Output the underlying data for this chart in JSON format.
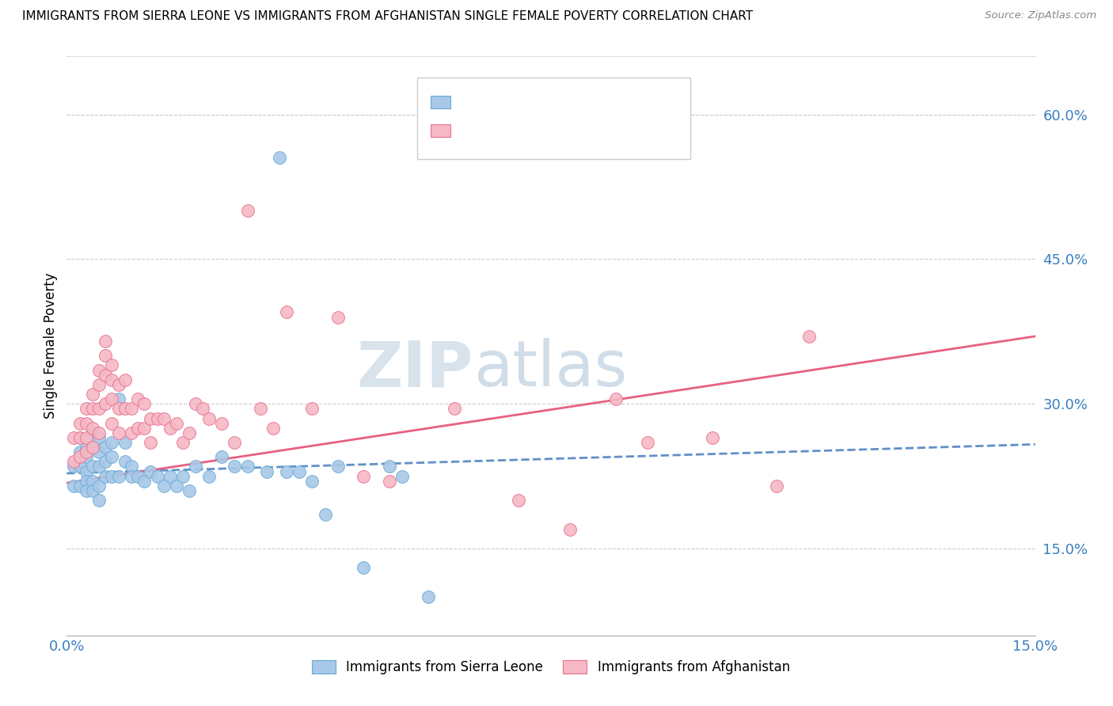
{
  "title": "IMMIGRANTS FROM SIERRA LEONE VS IMMIGRANTS FROM AFGHANISTAN SINGLE FEMALE POVERTY CORRELATION CHART",
  "source": "Source: ZipAtlas.com",
  "ylabel": "Single Female Poverty",
  "ytick_vals": [
    0.15,
    0.3,
    0.45,
    0.6
  ],
  "ytick_labels": [
    "15.0%",
    "30.0%",
    "45.0%",
    "60.0%"
  ],
  "xlim": [
    0.0,
    0.15
  ],
  "ylim": [
    0.06,
    0.66
  ],
  "color_sl": "#A8C8E8",
  "color_sl_edge": "#6AAAD4",
  "color_af": "#F5B8C4",
  "color_af_edge": "#E87090",
  "line_sl_color": "#6090C8",
  "line_af_color": "#E86080",
  "watermark_zip": "ZIP",
  "watermark_atlas": "atlas",
  "sl_x": [
    0.001,
    0.001,
    0.002,
    0.002,
    0.002,
    0.002,
    0.003,
    0.003,
    0.003,
    0.003,
    0.003,
    0.004,
    0.004,
    0.004,
    0.004,
    0.004,
    0.005,
    0.005,
    0.005,
    0.005,
    0.005,
    0.006,
    0.006,
    0.006,
    0.007,
    0.007,
    0.007,
    0.008,
    0.008,
    0.009,
    0.009,
    0.01,
    0.01,
    0.011,
    0.012,
    0.013,
    0.014,
    0.015,
    0.016,
    0.017,
    0.018,
    0.019,
    0.02,
    0.022,
    0.024,
    0.026,
    0.028,
    0.031,
    0.033,
    0.034,
    0.036,
    0.038,
    0.04,
    0.042,
    0.046,
    0.05,
    0.052,
    0.056
  ],
  "sl_y": [
    0.235,
    0.215,
    0.265,
    0.25,
    0.235,
    0.215,
    0.255,
    0.245,
    0.23,
    0.22,
    0.21,
    0.27,
    0.255,
    0.235,
    0.22,
    0.21,
    0.265,
    0.25,
    0.235,
    0.215,
    0.2,
    0.255,
    0.24,
    0.225,
    0.26,
    0.245,
    0.225,
    0.305,
    0.225,
    0.26,
    0.24,
    0.235,
    0.225,
    0.225,
    0.22,
    0.23,
    0.225,
    0.215,
    0.225,
    0.215,
    0.225,
    0.21,
    0.235,
    0.225,
    0.245,
    0.235,
    0.235,
    0.23,
    0.555,
    0.23,
    0.23,
    0.22,
    0.185,
    0.235,
    0.13,
    0.235,
    0.225,
    0.1
  ],
  "af_x": [
    0.001,
    0.001,
    0.002,
    0.002,
    0.002,
    0.003,
    0.003,
    0.003,
    0.003,
    0.004,
    0.004,
    0.004,
    0.004,
    0.005,
    0.005,
    0.005,
    0.005,
    0.006,
    0.006,
    0.006,
    0.006,
    0.007,
    0.007,
    0.007,
    0.007,
    0.008,
    0.008,
    0.008,
    0.009,
    0.009,
    0.01,
    0.01,
    0.011,
    0.011,
    0.012,
    0.012,
    0.013,
    0.013,
    0.014,
    0.015,
    0.016,
    0.017,
    0.018,
    0.019,
    0.02,
    0.021,
    0.022,
    0.024,
    0.026,
    0.028,
    0.03,
    0.032,
    0.034,
    0.038,
    0.042,
    0.046,
    0.05,
    0.06,
    0.07,
    0.078,
    0.085,
    0.09,
    0.1,
    0.11,
    0.115
  ],
  "af_y": [
    0.265,
    0.24,
    0.28,
    0.265,
    0.245,
    0.295,
    0.28,
    0.265,
    0.25,
    0.31,
    0.295,
    0.275,
    0.255,
    0.335,
    0.32,
    0.295,
    0.27,
    0.365,
    0.35,
    0.33,
    0.3,
    0.34,
    0.325,
    0.305,
    0.28,
    0.32,
    0.295,
    0.27,
    0.325,
    0.295,
    0.295,
    0.27,
    0.305,
    0.275,
    0.3,
    0.275,
    0.285,
    0.26,
    0.285,
    0.285,
    0.275,
    0.28,
    0.26,
    0.27,
    0.3,
    0.295,
    0.285,
    0.28,
    0.26,
    0.5,
    0.295,
    0.275,
    0.395,
    0.295,
    0.39,
    0.225,
    0.22,
    0.295,
    0.2,
    0.17,
    0.305,
    0.26,
    0.265,
    0.215,
    0.37
  ]
}
